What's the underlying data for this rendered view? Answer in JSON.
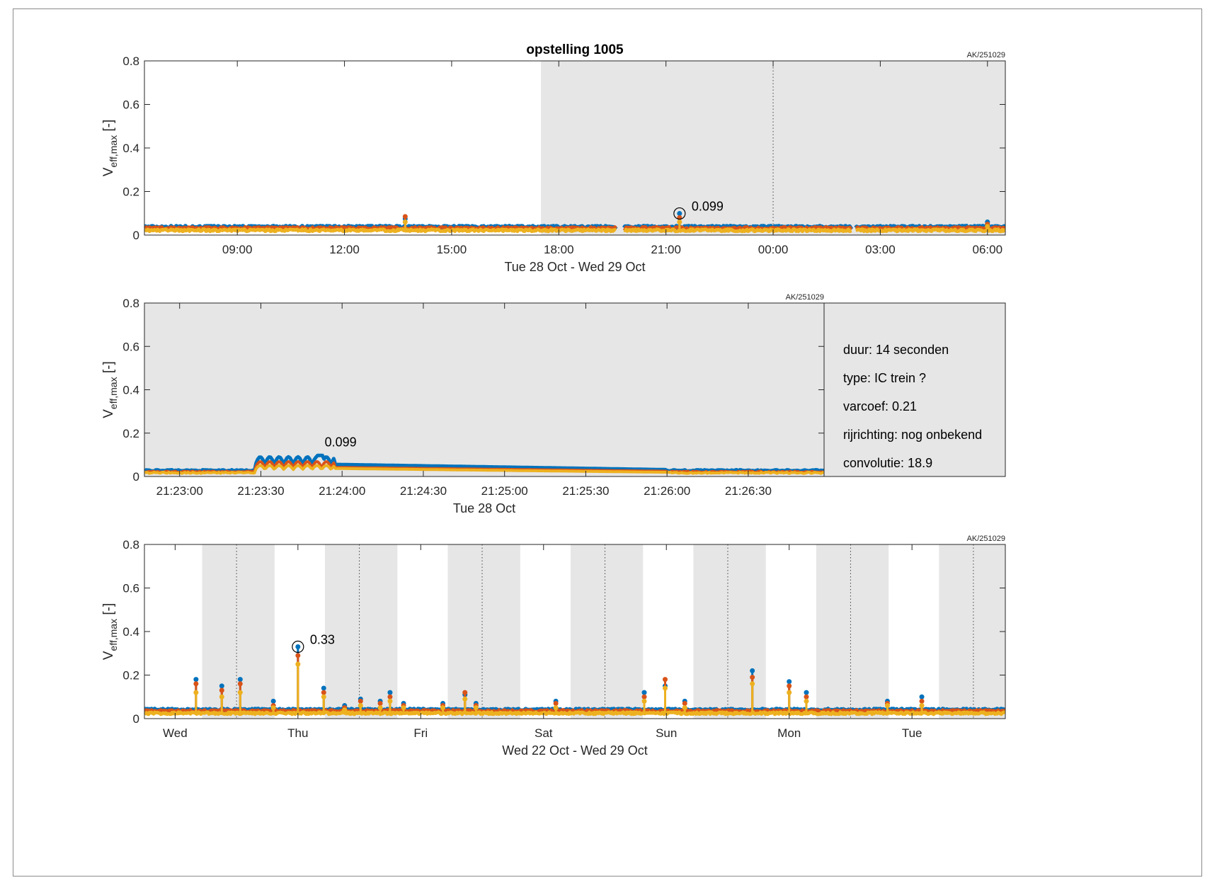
{
  "colors": {
    "series1": "#0072BD",
    "series2": "#D95319",
    "series3": "#EDB120",
    "night_shading": "#e6e6e6",
    "axes": "#262626"
  },
  "chart_data": [
    {
      "type": "line",
      "title": "opstelling 1005",
      "tag": "AK/251029",
      "ylabel": "V",
      "ylabel_sub": "eff,max",
      "ylabel_unit": "[-]",
      "xlabel": "Tue 28 Oct   -   Wed 29 Oct",
      "x_unit": "hours since Tue 28 Oct 00:00",
      "xlim": [
        6.4,
        30.5
      ],
      "ylim": [
        0,
        0.8
      ],
      "yticks": [
        0,
        0.2,
        0.4,
        0.6,
        0.8
      ],
      "ytick_labels": [
        "0",
        "0.2",
        "0.4",
        "0.6",
        "0.8"
      ],
      "xticks": [
        9,
        12,
        15,
        18,
        21,
        24,
        27,
        30
      ],
      "xtick_labels": [
        "09:00",
        "12:00",
        "15:00",
        "18:00",
        "21:00",
        "00:00",
        "03:00",
        "06:00"
      ],
      "shaded_x": [
        [
          17.5,
          30.5
        ]
      ],
      "dotted_x": [
        24
      ],
      "gaps_x": [
        [
          19.6,
          19.8
        ],
        [
          26.2,
          26.3
        ]
      ],
      "baseline": [
        0.037,
        0.032,
        0.022
      ],
      "spikes": [
        {
          "x": 13.7,
          "values": [
            0.075,
            0.085,
            0.06
          ]
        },
        {
          "x": 21.38,
          "values": [
            0.099,
            0.08,
            0.06
          ]
        },
        {
          "x": 30.0,
          "values": [
            0.06,
            0.05,
            0.04
          ]
        }
      ],
      "peak": {
        "x": 21.38,
        "y": 0.099,
        "label": "0.099"
      }
    },
    {
      "type": "line",
      "tag": "AK/251029",
      "ylabel": "V",
      "ylabel_sub": "eff,max",
      "ylabel_unit": "[-]",
      "xlabel": "Tue 28 Oct",
      "x_unit": "seconds since Tue 28 Oct 21:22:00",
      "xlim": [
        47,
        298
      ],
      "ylim": [
        0,
        0.8
      ],
      "yticks": [
        0,
        0.2,
        0.4,
        0.6,
        0.8
      ],
      "ytick_labels": [
        "0",
        "0.2",
        "0.4",
        "0.6",
        "0.8"
      ],
      "xticks": [
        60,
        90,
        120,
        150,
        180,
        210,
        240,
        270
      ],
      "xtick_labels": [
        "21:23:00",
        "21:23:30",
        "21:24:00",
        "21:24:30",
        "21:25:00",
        "21:25:30",
        "21:26:00",
        "21:26:30"
      ],
      "shaded_x": [
        [
          47,
          298
        ]
      ],
      "event": {
        "start": 96,
        "end": 117
      },
      "baseline": [
        0.028,
        0.022,
        0.017
      ],
      "peak": {
        "x": 112,
        "y": 0.099,
        "label": "0.099"
      },
      "info": {
        "duur": "duur: 14 seconden",
        "type": "type: IC trein ?",
        "varcoef": "varcoef: 0.21",
        "rijrichting": "rijrichting: nog onbekend",
        "convolutie": "convolutie: 18.9"
      }
    },
    {
      "type": "line",
      "tag": "AK/251029",
      "ylabel": "V",
      "ylabel_sub": "eff,max",
      "ylabel_unit": "[-]",
      "xlabel": "Wed 22 Oct   -   Wed 29 Oct",
      "x_unit": "days since Wed 22 Oct 00:00",
      "xlim": [
        0,
        7.01
      ],
      "ylim": [
        0,
        0.8
      ],
      "yticks": [
        0,
        0.2,
        0.4,
        0.6,
        0.8
      ],
      "ytick_labels": [
        "0",
        "0.2",
        "0.4",
        "0.6",
        "0.8"
      ],
      "xticks": [
        0.25,
        1.25,
        2.25,
        3.25,
        4.25,
        5.25,
        6.25
      ],
      "xtick_labels": [
        "Wed",
        "Thu",
        "Fri",
        "Sat",
        "Sun",
        "Mon",
        "Tue"
      ],
      "shaded_x": [
        [
          0.47,
          1.06
        ],
        [
          1.47,
          2.06
        ],
        [
          2.47,
          3.06
        ],
        [
          3.47,
          4.06
        ],
        [
          4.47,
          5.06
        ],
        [
          5.47,
          6.06
        ],
        [
          6.47,
          7.01
        ]
      ],
      "dotted_x": [
        0.75,
        1.75,
        2.75,
        3.75,
        4.75,
        5.75,
        6.75
      ],
      "baseline": [
        0.04,
        0.035,
        0.025
      ],
      "spikes": [
        {
          "x": 0.42,
          "values": [
            0.18,
            0.16,
            0.12
          ]
        },
        {
          "x": 0.63,
          "values": [
            0.15,
            0.13,
            0.1
          ]
        },
        {
          "x": 0.78,
          "values": [
            0.18,
            0.16,
            0.12
          ]
        },
        {
          "x": 1.05,
          "values": [
            0.08,
            0.06,
            0.05
          ]
        },
        {
          "x": 1.25,
          "values": [
            0.33,
            0.29,
            0.25
          ]
        },
        {
          "x": 1.46,
          "values": [
            0.14,
            0.12,
            0.1
          ]
        },
        {
          "x": 1.63,
          "values": [
            0.06,
            0.05,
            0.04
          ]
        },
        {
          "x": 1.76,
          "values": [
            0.09,
            0.08,
            0.06
          ]
        },
        {
          "x": 1.92,
          "values": [
            0.08,
            0.07,
            0.05
          ]
        },
        {
          "x": 2.0,
          "values": [
            0.12,
            0.1,
            0.08
          ]
        },
        {
          "x": 2.11,
          "values": [
            0.07,
            0.06,
            0.05
          ]
        },
        {
          "x": 2.43,
          "values": [
            0.07,
            0.06,
            0.05
          ]
        },
        {
          "x": 2.61,
          "values": [
            0.11,
            0.12,
            0.09
          ]
        },
        {
          "x": 2.7,
          "values": [
            0.07,
            0.06,
            0.05
          ]
        },
        {
          "x": 3.35,
          "values": [
            0.08,
            0.07,
            0.05
          ]
        },
        {
          "x": 4.07,
          "values": [
            0.12,
            0.1,
            0.08
          ]
        },
        {
          "x": 4.24,
          "values": [
            0.15,
            0.18,
            0.14
          ]
        },
        {
          "x": 4.4,
          "values": [
            0.08,
            0.07,
            0.05
          ]
        },
        {
          "x": 4.95,
          "values": [
            0.22,
            0.19,
            0.16
          ]
        },
        {
          "x": 5.25,
          "values": [
            0.17,
            0.15,
            0.12
          ]
        },
        {
          "x": 5.39,
          "values": [
            0.12,
            0.1,
            0.08
          ]
        },
        {
          "x": 6.05,
          "values": [
            0.08,
            0.07,
            0.06
          ]
        },
        {
          "x": 6.33,
          "values": [
            0.1,
            0.08,
            0.06
          ]
        }
      ],
      "peak": {
        "x": 1.25,
        "y": 0.33,
        "label": "0.33"
      }
    }
  ]
}
